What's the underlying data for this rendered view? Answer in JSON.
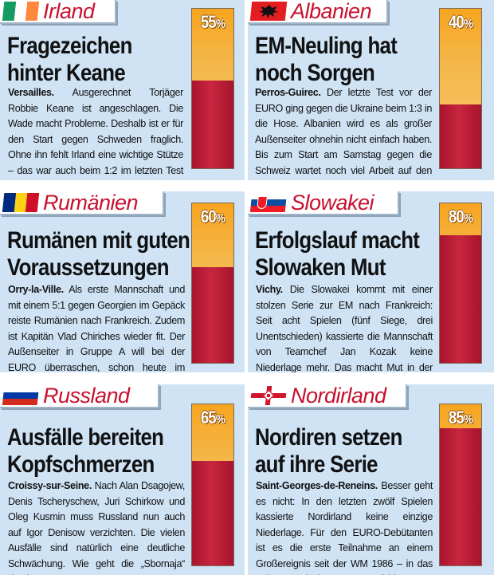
{
  "panels": [
    {
      "country": "Irland",
      "headline": [
        "Fragezeichen",
        "hinter Keane"
      ],
      "place": "Versailles.",
      "text": "Ausgerechnet Torjäger Robbie Keane ist angeschlagen. Die Wade macht Probleme. Deshalb ist er für den Start gegen Schweden fraglich. Ohne ihn fehlt Irland eine wichtige Stütze – das war auch beim 1:2 im letzten Test gegen Weißrussland zu merken.",
      "percent": 55,
      "flag": "ireland-flag"
    },
    {
      "country": "Albanien",
      "headline": [
        "EM-Neuling hat",
        "noch Sorgen"
      ],
      "place": "Perros-Guirec.",
      "text": "Der letzte Test vor der EURO ging gegen die Ukraine beim 1:3 in die Hose. Albanien wird es als großer Außenseiter ohnehin nicht einfach haben. Bis zum Start am Samstag gegen die Schweiz wartet noch viel Arbeit auf den EM-Neuling.",
      "percent": 40,
      "flag": "albania-flag"
    },
    {
      "country": "Rumänien",
      "headline": [
        "Rumänen mit guten",
        "Voraussetzungen"
      ],
      "place": "Orry-la-Ville.",
      "text": "Als erste Mannschaft und mit einem 5:1 gegen Georgien im Gepäck reiste Rumänien nach Frankreich. Zudem ist Kapitän Vlad Chiriches wieder fit. Der Außenseiter in Gruppe A will bei der EURO überraschen, schon heute im Auftaktspiel gegen Frankreich.",
      "percent": 60,
      "flag": "romania-flag"
    },
    {
      "country": "Slowakei",
      "headline": [
        "Erfolgslauf macht",
        "Slowaken Mut"
      ],
      "place": "Vichy.",
      "text": "Die Slowakei kommt mit einer stolzen Serie zur EM nach Frankreich: Seit acht Spielen (fünf Siege, drei Unentschieden) kassierte die Mannschaft von Teamchef Jan Kozak keine Niederlage mehr. Das macht Mut in der schwierigen Gruppe B.",
      "percent": 80,
      "flag": "slovakia-flag"
    },
    {
      "country": "Russland",
      "headline": [
        "Ausfälle bereiten",
        "Kopfschmerzen"
      ],
      "place": "Croissy-sur-Seine.",
      "text": "Nach Alan Dsagojew, Denis Tscheryschew, Juri Schirkow und Oleg Kusmin muss Russland nun auch auf Igor Denisow verzichten. Die vielen Ausfälle sind natürlich eine deutliche Schwächung. Wie geht die „Sbornaja“ damit um?",
      "percent": 65,
      "flag": "russia-flag"
    },
    {
      "country": "Nordirland",
      "headline": [
        "Nordiren setzen",
        "auf ihre Serie"
      ],
      "place": "Saint-Georges-de-Reneins.",
      "text": "Besser geht es nicht: In den letzten zwölf Spielen kassierte Nordirland keine einzige Niederlage. Für den EURO-Debütanten ist es die erste Teilnahme an einem Großereignis seit der WM 1986 – in das geht man mit einem guten Gefühl.",
      "percent": 85,
      "flag": "northern-ireland-flag"
    }
  ],
  "percent_symbol": "%",
  "colors": {
    "panel_bg": "#cfe3f5",
    "country_red": "#c8102e",
    "bar_orange": "#f7a51f",
    "bar_red": "#b81d36"
  }
}
